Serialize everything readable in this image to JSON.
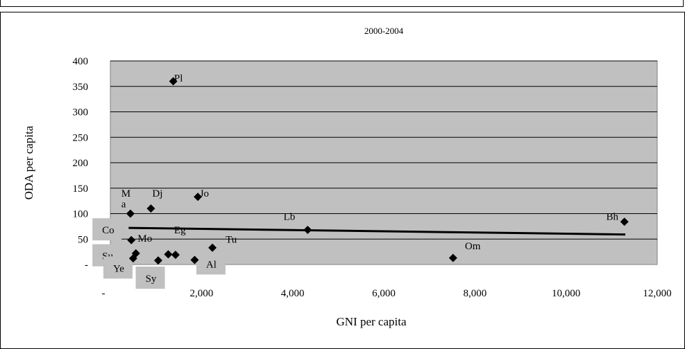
{
  "chart_data": {
    "type": "scatter",
    "title": "2000-2004",
    "xlabel": "GNI per capita",
    "ylabel": "ODA per capita",
    "xlim": [
      0,
      12000
    ],
    "ylim": [
      0,
      400
    ],
    "x_ticks": [
      {
        "value": 0,
        "label": "-"
      },
      {
        "value": 2000,
        "label": "2,000"
      },
      {
        "value": 4000,
        "label": "4,000"
      },
      {
        "value": 6000,
        "label": "6,000"
      },
      {
        "value": 8000,
        "label": "8,000"
      },
      {
        "value": 10000,
        "label": "10,000"
      },
      {
        "value": 12000,
        "label": "12,000"
      }
    ],
    "y_ticks": [
      {
        "value": 0,
        "label": "-"
      },
      {
        "value": 50,
        "label": "50"
      },
      {
        "value": 100,
        "label": "100"
      },
      {
        "value": 150,
        "label": "150"
      },
      {
        "value": 200,
        "label": "200"
      },
      {
        "value": 250,
        "label": "250"
      },
      {
        "value": 300,
        "label": "300"
      },
      {
        "value": 350,
        "label": "350"
      },
      {
        "value": 400,
        "label": "400"
      }
    ],
    "grid": "horizontal",
    "plot_background": "#c0c0c0",
    "marker_color": "#000000",
    "points": [
      {
        "x": 1380,
        "y": 360
      },
      {
        "x": 1920,
        "y": 133
      },
      {
        "x": 890,
        "y": 110
      },
      {
        "x": 440,
        "y": 100
      },
      {
        "x": 4330,
        "y": 68
      },
      {
        "x": 11280,
        "y": 84
      },
      {
        "x": 460,
        "y": 48
      },
      {
        "x": 2240,
        "y": 33
      },
      {
        "x": 7520,
        "y": 13
      },
      {
        "x": 500,
        "y": 12
      },
      {
        "x": 560,
        "y": 22
      },
      {
        "x": 1050,
        "y": 8
      },
      {
        "x": 1270,
        "y": 20
      },
      {
        "x": 1430,
        "y": 19
      },
      {
        "x": 1850,
        "y": 9
      }
    ],
    "point_labels": [
      {
        "text": "Pl",
        "x": 1400,
        "y": 360,
        "box": false
      },
      {
        "text": "Jo",
        "x": 1960,
        "y": 133,
        "box": false
      },
      {
        "text": "Dj",
        "x": 920,
        "y": 133,
        "box": false
      },
      {
        "text": "M",
        "x": 240,
        "y": 133,
        "box": false
      },
      {
        "text": "a",
        "x": 240,
        "y": 112,
        "box": false
      },
      {
        "text": "Lb",
        "x": 3800,
        "y": 88,
        "box": false
      },
      {
        "text": "Bh",
        "x": 10880,
        "y": 88,
        "box": false
      },
      {
        "text": "Co",
        "x": -180,
        "y": 61,
        "box": true
      },
      {
        "text": "Eg",
        "x": 1400,
        "y": 61,
        "box": false
      },
      {
        "text": "Mo",
        "x": 600,
        "y": 45,
        "box": false
      },
      {
        "text": "Tu",
        "x": 2530,
        "y": 43,
        "box": false
      },
      {
        "text": "Om",
        "x": 7780,
        "y": 30,
        "box": false
      },
      {
        "text": "Su",
        "x": -180,
        "y": 10,
        "box": true
      },
      {
        "text": "Ye",
        "x": 60,
        "y": -14,
        "box": true
      },
      {
        "text": "Al",
        "x": 2100,
        "y": -6,
        "box": true
      },
      {
        "text": "Sy",
        "x": 770,
        "y": -34,
        "box": true
      }
    ],
    "trendline": {
      "x": [
        400,
        11300
      ],
      "y": [
        72,
        59
      ]
    }
  }
}
